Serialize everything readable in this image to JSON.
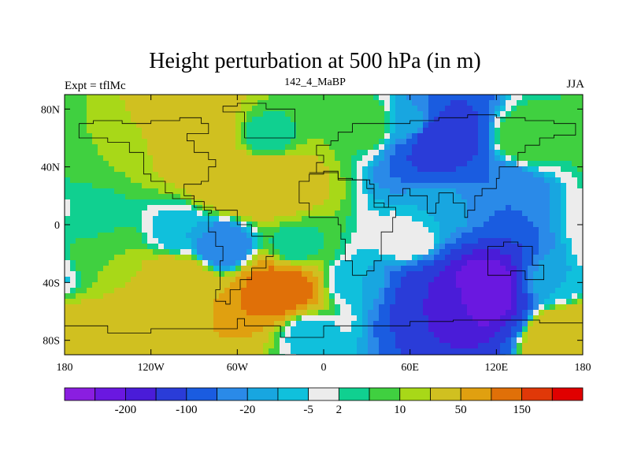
{
  "title": "Height perturbation at 500 hPa (in m)",
  "left_string": "Expt = tflMc",
  "center_string": "142_4_MaBP",
  "right_string": "JJA",
  "chart_data": {
    "type": "heatmap",
    "title": "Height perturbation at 500 hPa (in m)",
    "xlabel": "",
    "ylabel": "",
    "x_ticks": [
      "180",
      "120W",
      "60W",
      "0",
      "60E",
      "120E",
      "180"
    ],
    "x_tick_values": [
      -180,
      -120,
      -60,
      0,
      60,
      120,
      180
    ],
    "y_ticks": [
      "80N",
      "40N",
      "0",
      "40S",
      "80S"
    ],
    "y_tick_values": [
      80,
      40,
      0,
      -40,
      -80
    ],
    "xlim": [
      -180,
      180
    ],
    "ylim": [
      -90,
      90
    ],
    "colorbar": {
      "colors": [
        "#8a1ee0",
        "#6a18e0",
        "#4a1cd8",
        "#2a3cd8",
        "#1a5ce0",
        "#2a8ae8",
        "#18a6e0",
        "#10c0dc",
        "#ececec",
        "#10d090",
        "#40d040",
        "#a8d818",
        "#d0c020",
        "#e0a010",
        "#e07008",
        "#e03808",
        "#e00000"
      ],
      "labels": [
        "-200",
        "-100",
        "-20",
        "-5",
        "2",
        "10",
        "50",
        "150"
      ],
      "label_after_box": [
        1,
        3,
        5,
        7,
        8,
        10,
        12,
        14
      ]
    },
    "features": [
      {
        "lon": -150,
        "lat": 50,
        "value": 10
      },
      {
        "lon": -90,
        "lat": 65,
        "value": 50
      },
      {
        "lon": -40,
        "lat": 60,
        "value": 2
      },
      {
        "lon": -60,
        "lat": 30,
        "value": 50
      },
      {
        "lon": -40,
        "lat": 30,
        "value": 50
      },
      {
        "lon": -160,
        "lat": 5,
        "value": 2
      },
      {
        "lon": -100,
        "lat": -5,
        "value": -5
      },
      {
        "lon": -70,
        "lat": -15,
        "value": -20
      },
      {
        "lon": -20,
        "lat": -15,
        "value": 2
      },
      {
        "lon": -150,
        "lat": -20,
        "value": 10
      },
      {
        "lon": -100,
        "lat": -40,
        "value": 50
      },
      {
        "lon": -30,
        "lat": -45,
        "value": 150
      },
      {
        "lon": -120,
        "lat": -75,
        "value": 50
      },
      {
        "lon": -10,
        "lat": -75,
        "value": -5
      },
      {
        "lon": 30,
        "lat": 70,
        "value": 10
      },
      {
        "lon": 60,
        "lat": 70,
        "value": -5
      },
      {
        "lon": 80,
        "lat": 60,
        "value": -100
      },
      {
        "lon": 140,
        "lat": 60,
        "value": 10
      },
      {
        "lon": 120,
        "lat": 25,
        "value": -20
      },
      {
        "lon": 80,
        "lat": 10,
        "value": -5
      },
      {
        "lon": 60,
        "lat": -10,
        "value": 2
      },
      {
        "lon": 20,
        "lat": -40,
        "value": -5
      },
      {
        "lon": 80,
        "lat": -50,
        "value": -100
      },
      {
        "lon": 110,
        "lat": -45,
        "value": -200
      },
      {
        "lon": 160,
        "lat": -40,
        "value": -5
      },
      {
        "lon": 170,
        "lat": -75,
        "value": 50
      }
    ]
  }
}
